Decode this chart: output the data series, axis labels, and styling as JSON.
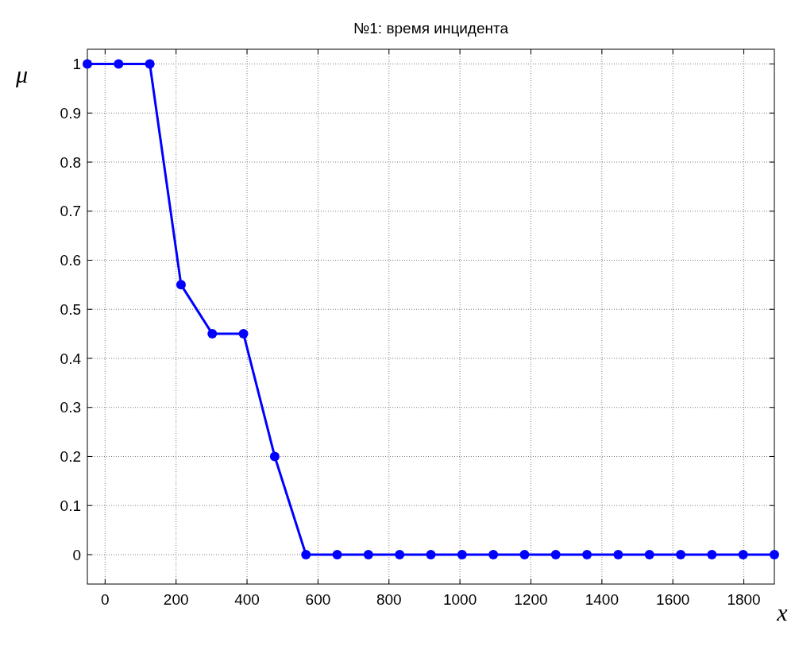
{
  "chart_data": {
    "type": "line",
    "title": "№1: время инцидента",
    "xlabel": "x",
    "ylabel": "μ",
    "x": [
      -50,
      38,
      126,
      214,
      302,
      390,
      478,
      566,
      654,
      742,
      830,
      918,
      1006,
      1094,
      1182,
      1270,
      1358,
      1446,
      1534,
      1622,
      1710,
      1798,
      1886
    ],
    "series": [
      {
        "color": "#0000ff",
        "values": [
          1,
          1,
          1,
          0.55,
          0.45,
          0.45,
          0.2,
          0,
          0,
          0,
          0,
          0,
          0,
          0,
          0,
          0,
          0,
          0,
          0,
          0,
          0,
          0,
          0
        ]
      }
    ],
    "xlim": [
      -50,
      1886
    ],
    "xticks": [
      0,
      200,
      400,
      600,
      800,
      1000,
      1200,
      1400,
      1600,
      1800
    ],
    "ylim": [
      -0.06,
      1.03
    ],
    "yticks": [
      0,
      0.1,
      0.2,
      0.3,
      0.4,
      0.5,
      0.6,
      0.7,
      0.8,
      0.9,
      1
    ],
    "grid": true,
    "marker": "circle",
    "line_style": "solid"
  }
}
